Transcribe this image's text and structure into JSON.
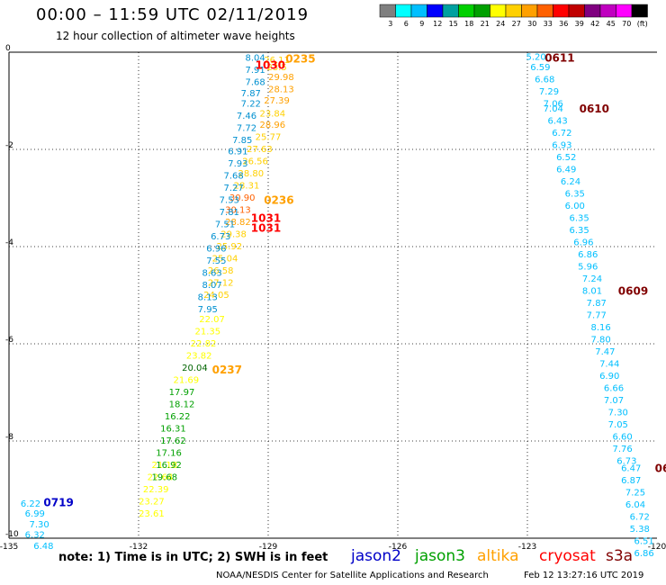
{
  "header": {
    "title": "00:00 – 11:59 UTC 02/11/2019",
    "subtitle": "12 hour collection of altimeter wave heights"
  },
  "colorbar": {
    "colors": [
      "#7f7f7f",
      "#00ffff",
      "#00bfff",
      "#0000ff",
      "#00a0a0",
      "#00d000",
      "#00a000",
      "#ffff00",
      "#ffd000",
      "#ffa000",
      "#ff6000",
      "#ff0000",
      "#c00000",
      "#800080",
      "#c000c0",
      "#ff00ff",
      "#000000"
    ],
    "labels": [
      "3",
      "6",
      "9",
      "12",
      "15",
      "18",
      "21",
      "24",
      "27",
      "30",
      "33",
      "36",
      "39",
      "42",
      "45",
      "70",
      "(ft)"
    ]
  },
  "notes": {
    "note": "note:  1) Time is in UTC;  2) SWH is in feet",
    "credit": "NOAA/NESDIS Center for Satellite Applications and Research",
    "timestamp": "Feb 12 13:27:16 UTC 2019"
  },
  "satellites": [
    {
      "name": "jason2",
      "color": "#0000c8"
    },
    {
      "name": "jason3",
      "color": "#00a000"
    },
    {
      "name": "altika",
      "color": "#ffa000"
    },
    {
      "name": "cryosat",
      "color": "#ff0000"
    },
    {
      "name": "s3a",
      "color": "#800000"
    }
  ],
  "chart_data": {
    "type": "scatter",
    "xlim": [
      -135,
      -120
    ],
    "ylim": [
      -10,
      0
    ],
    "xticks": [
      "-135",
      "-132",
      "-129",
      "-126",
      "-123",
      "-120"
    ],
    "yticks": [
      "0",
      "-2",
      "-4",
      "-6",
      "-8",
      "-10"
    ],
    "grid": true,
    "points": [
      {
        "x": -128.8,
        "y": -0.15,
        "v": "26.11",
        "c": "#ffd000"
      },
      {
        "x": -128.8,
        "y": -0.3,
        "v": "23.5",
        "c": "#ffd000"
      },
      {
        "x": -128.7,
        "y": -0.5,
        "v": "29.98",
        "c": "#ffa000"
      },
      {
        "x": -128.7,
        "y": -0.75,
        "v": "28.13",
        "c": "#ffa000"
      },
      {
        "x": -128.8,
        "y": -0.98,
        "v": "27.39",
        "c": "#ffa000"
      },
      {
        "x": -128.9,
        "y": -1.25,
        "v": "23.84",
        "c": "#ffd000"
      },
      {
        "x": -128.9,
        "y": -1.48,
        "v": "28.96",
        "c": "#ffa000"
      },
      {
        "x": -129.0,
        "y": -1.73,
        "v": "25.77",
        "c": "#ffd000"
      },
      {
        "x": -129.2,
        "y": -1.98,
        "v": "27.63",
        "c": "#ffd000"
      },
      {
        "x": -129.3,
        "y": -2.23,
        "v": "26.56",
        "c": "#ffd000"
      },
      {
        "x": -129.4,
        "y": -2.48,
        "v": "28.80",
        "c": "#ffd000"
      },
      {
        "x": -129.5,
        "y": -2.73,
        "v": "28.31",
        "c": "#ffd000"
      },
      {
        "x": -129.6,
        "y": -2.98,
        "v": "30.90",
        "c": "#ff6000"
      },
      {
        "x": -129.7,
        "y": -3.23,
        "v": "30.13",
        "c": "#ff6000"
      },
      {
        "x": -129.7,
        "y": -3.48,
        "v": "28.82",
        "c": "#ffa000"
      },
      {
        "x": -129.8,
        "y": -3.73,
        "v": "29.38",
        "c": "#ffd000"
      },
      {
        "x": -129.9,
        "y": -3.98,
        "v": "25.92",
        "c": "#ffd000"
      },
      {
        "x": -130.0,
        "y": -4.23,
        "v": "25.04",
        "c": "#ffd000"
      },
      {
        "x": -130.1,
        "y": -4.48,
        "v": "26.58",
        "c": "#ffd000"
      },
      {
        "x": -130.1,
        "y": -4.73,
        "v": "27.12",
        "c": "#ffd000"
      },
      {
        "x": -130.2,
        "y": -4.98,
        "v": "24.05",
        "c": "#ffd000"
      },
      {
        "x": -130.3,
        "y": -5.48,
        "v": "22.07",
        "c": "#ffff00"
      },
      {
        "x": -130.4,
        "y": -5.73,
        "v": "21.35",
        "c": "#ffff00"
      },
      {
        "x": -130.5,
        "y": -5.98,
        "v": "22.82",
        "c": "#ffff00"
      },
      {
        "x": -130.6,
        "y": -6.23,
        "v": "23.82",
        "c": "#ffff00"
      },
      {
        "x": -130.9,
        "y": -6.73,
        "v": "21.69",
        "c": "#ffff00"
      },
      {
        "x": -131.4,
        "y": -8.48,
        "v": "21.18",
        "c": "#ffff00"
      },
      {
        "x": -131.5,
        "y": -8.73,
        "v": "22.64",
        "c": "#ffff00"
      },
      {
        "x": -131.6,
        "y": -8.98,
        "v": "22.39",
        "c": "#ffff00"
      },
      {
        "x": -131.7,
        "y": -9.23,
        "v": "23.27",
        "c": "#ffff00"
      },
      {
        "x": -131.7,
        "y": -9.48,
        "v": "23.61",
        "c": "#ffff00"
      },
      {
        "x": -130.7,
        "y": -6.48,
        "v": "20.04",
        "c": "#006400"
      },
      {
        "x": -131.0,
        "y": -6.98,
        "v": "17.97",
        "c": "#00a000"
      },
      {
        "x": -131.0,
        "y": -7.23,
        "v": "18.12",
        "c": "#00a000"
      },
      {
        "x": -131.1,
        "y": -7.48,
        "v": "16.22",
        "c": "#00a000"
      },
      {
        "x": -131.2,
        "y": -7.73,
        "v": "16.31",
        "c": "#00a000"
      },
      {
        "x": -131.2,
        "y": -7.98,
        "v": "17.62",
        "c": "#00a000"
      },
      {
        "x": -131.3,
        "y": -8.23,
        "v": "17.16",
        "c": "#00a000"
      },
      {
        "x": -131.3,
        "y": -8.48,
        "v": "16.92",
        "c": "#00a000"
      },
      {
        "x": -131.4,
        "y": -8.73,
        "v": "19.68",
        "c": "#00a000"
      },
      {
        "x": -129.3,
        "y": -0.1,
        "v": "8.04",
        "c": "#0090d0"
      },
      {
        "x": -129.3,
        "y": -0.35,
        "v": "7.91",
        "c": "#0090d0"
      },
      {
        "x": -129.3,
        "y": -0.6,
        "v": "7.68",
        "c": "#0090d0"
      },
      {
        "x": -129.4,
        "y": -0.83,
        "v": "7.87",
        "c": "#0090d0"
      },
      {
        "x": -129.4,
        "y": -1.05,
        "v": "7.22",
        "c": "#0090d0"
      },
      {
        "x": -129.5,
        "y": -1.3,
        "v": "7.46",
        "c": "#0090d0"
      },
      {
        "x": -129.5,
        "y": -1.55,
        "v": "7.72",
        "c": "#0090d0"
      },
      {
        "x": -129.6,
        "y": -1.8,
        "v": "7.85",
        "c": "#0090d0"
      },
      {
        "x": -129.7,
        "y": -2.03,
        "v": "6.91",
        "c": "#0090d0"
      },
      {
        "x": -129.7,
        "y": -2.28,
        "v": "7.93",
        "c": "#0090d0"
      },
      {
        "x": -129.8,
        "y": -2.53,
        "v": "7.68",
        "c": "#0090d0"
      },
      {
        "x": -129.8,
        "y": -2.78,
        "v": "7.27",
        "c": "#0090d0"
      },
      {
        "x": -129.9,
        "y": -3.03,
        "v": "7.53",
        "c": "#0090d0"
      },
      {
        "x": -129.9,
        "y": -3.28,
        "v": "7.81",
        "c": "#0090d0"
      },
      {
        "x": -130.0,
        "y": -3.53,
        "v": "7.51",
        "c": "#0090d0"
      },
      {
        "x": -130.1,
        "y": -3.78,
        "v": "6.73",
        "c": "#0090d0"
      },
      {
        "x": -130.2,
        "y": -4.03,
        "v": "6.96",
        "c": "#0090d0"
      },
      {
        "x": -130.2,
        "y": -4.28,
        "v": "7.55",
        "c": "#0090d0"
      },
      {
        "x": -130.3,
        "y": -4.53,
        "v": "8.63",
        "c": "#0090d0"
      },
      {
        "x": -130.3,
        "y": -4.78,
        "v": "8.07",
        "c": "#0090d0"
      },
      {
        "x": -130.4,
        "y": -5.03,
        "v": "8.13",
        "c": "#0090d0"
      },
      {
        "x": -130.4,
        "y": -5.28,
        "v": "7.95",
        "c": "#0090d0"
      },
      {
        "x": -134.5,
        "y": -9.28,
        "v": "6.22",
        "c": "#00bfff"
      },
      {
        "x": -134.4,
        "y": -9.48,
        "v": "6.99",
        "c": "#00bfff"
      },
      {
        "x": -134.3,
        "y": -9.7,
        "v": "7.30",
        "c": "#00bfff"
      },
      {
        "x": -134.4,
        "y": -9.92,
        "v": "6.32",
        "c": "#00bfff"
      },
      {
        "x": -134.2,
        "y": -10.15,
        "v": "6.48",
        "c": "#00bfff"
      },
      {
        "x": -122.8,
        "y": -0.08,
        "v": "5.20",
        "c": "#00bfff"
      },
      {
        "x": -122.7,
        "y": -0.3,
        "v": "6.59",
        "c": "#00bfff"
      },
      {
        "x": -122.6,
        "y": -0.55,
        "v": "6.68",
        "c": "#00bfff"
      },
      {
        "x": -122.5,
        "y": -0.8,
        "v": "7.29",
        "c": "#00bfff"
      },
      {
        "x": -122.4,
        "y": -1.05,
        "v": "7.06",
        "c": "#00bfff"
      },
      {
        "x": -122.4,
        "y": -1.15,
        "v": "7.04",
        "c": "#00bfff"
      },
      {
        "x": -122.3,
        "y": -1.4,
        "v": "6.43",
        "c": "#00bfff"
      },
      {
        "x": -122.2,
        "y": -1.65,
        "v": "6.72",
        "c": "#00bfff"
      },
      {
        "x": -122.2,
        "y": -1.9,
        "v": "6.93",
        "c": "#00bfff"
      },
      {
        "x": -122.1,
        "y": -2.15,
        "v": "6.52",
        "c": "#00bfff"
      },
      {
        "x": -122.1,
        "y": -2.4,
        "v": "6.49",
        "c": "#00bfff"
      },
      {
        "x": -122.0,
        "y": -2.65,
        "v": "6.24",
        "c": "#00bfff"
      },
      {
        "x": -121.9,
        "y": -2.9,
        "v": "6.35",
        "c": "#00bfff"
      },
      {
        "x": -121.9,
        "y": -3.15,
        "v": "6.00",
        "c": "#00bfff"
      },
      {
        "x": -121.8,
        "y": -3.4,
        "v": "6.35",
        "c": "#00bfff"
      },
      {
        "x": -121.8,
        "y": -3.65,
        "v": "6.35",
        "c": "#00bfff"
      },
      {
        "x": -121.7,
        "y": -3.9,
        "v": "6.96",
        "c": "#00bfff"
      },
      {
        "x": -121.6,
        "y": -4.15,
        "v": "6.86",
        "c": "#00bfff"
      },
      {
        "x": -121.6,
        "y": -4.4,
        "v": "5.96",
        "c": "#00bfff"
      },
      {
        "x": -121.5,
        "y": -4.65,
        "v": "7.24",
        "c": "#00bfff"
      },
      {
        "x": -121.5,
        "y": -4.9,
        "v": "8.01",
        "c": "#00bfff"
      },
      {
        "x": -121.4,
        "y": -5.15,
        "v": "7.87",
        "c": "#00bfff"
      },
      {
        "x": -121.4,
        "y": -5.4,
        "v": "7.77",
        "c": "#00bfff"
      },
      {
        "x": -121.3,
        "y": -5.65,
        "v": "8.16",
        "c": "#00bfff"
      },
      {
        "x": -121.3,
        "y": -5.9,
        "v": "7.80",
        "c": "#00bfff"
      },
      {
        "x": -121.2,
        "y": -6.15,
        "v": "7.47",
        "c": "#00bfff"
      },
      {
        "x": -121.1,
        "y": -6.4,
        "v": "7.44",
        "c": "#00bfff"
      },
      {
        "x": -121.1,
        "y": -6.65,
        "v": "6.90",
        "c": "#00bfff"
      },
      {
        "x": -121.0,
        "y": -6.9,
        "v": "6.66",
        "c": "#00bfff"
      },
      {
        "x": -121.0,
        "y": -7.15,
        "v": "7.07",
        "c": "#00bfff"
      },
      {
        "x": -120.9,
        "y": -7.4,
        "v": "7.30",
        "c": "#00bfff"
      },
      {
        "x": -120.9,
        "y": -7.65,
        "v": "7.05",
        "c": "#00bfff"
      },
      {
        "x": -120.8,
        "y": -7.9,
        "v": "6.60",
        "c": "#00bfff"
      },
      {
        "x": -120.8,
        "y": -8.15,
        "v": "7.76",
        "c": "#00bfff"
      },
      {
        "x": -120.7,
        "y": -8.4,
        "v": "6.73",
        "c": "#00bfff"
      },
      {
        "x": -120.6,
        "y": -8.55,
        "v": "6.47",
        "c": "#00bfff"
      },
      {
        "x": -120.6,
        "y": -8.8,
        "v": "6.87",
        "c": "#00bfff"
      },
      {
        "x": -120.5,
        "y": -9.05,
        "v": "7.25",
        "c": "#00bfff"
      },
      {
        "x": -120.5,
        "y": -9.3,
        "v": "6.04",
        "c": "#00bfff"
      },
      {
        "x": -120.4,
        "y": -9.55,
        "v": "6.72",
        "c": "#00bfff"
      },
      {
        "x": -120.4,
        "y": -9.8,
        "v": "5.38",
        "c": "#00bfff"
      },
      {
        "x": -120.3,
        "y": -10.05,
        "v": "6.51",
        "c": "#00bfff"
      },
      {
        "x": -120.3,
        "y": -10.3,
        "v": "6.86",
        "c": "#00bfff"
      }
    ],
    "times": [
      {
        "x": -128.6,
        "y": -0.12,
        "t": "0235",
        "c": "#ffa000"
      },
      {
        "x": -129.3,
        "y": -0.25,
        "t": "1030",
        "c": "#ff0000"
      },
      {
        "x": -129.1,
        "y": -3.03,
        "t": "0236",
        "c": "#ffa000"
      },
      {
        "x": -129.4,
        "y": -3.4,
        "t": "1031",
        "c": "#ff0000"
      },
      {
        "x": -129.4,
        "y": -3.6,
        "t": "1031",
        "c": "#ff0000"
      },
      {
        "x": -130.3,
        "y": -6.52,
        "t": "0237",
        "c": "#ffa000"
      },
      {
        "x": -134.2,
        "y": -9.25,
        "t": "0719",
        "c": "#0000c8"
      },
      {
        "x": -122.6,
        "y": -0.1,
        "t": "0611",
        "c": "#800000"
      },
      {
        "x": -121.8,
        "y": -1.15,
        "t": "0610",
        "c": "#800000"
      },
      {
        "x": -120.9,
        "y": -4.9,
        "t": "0609",
        "c": "#800000"
      },
      {
        "x": -120.05,
        "y": -8.55,
        "t": "06",
        "c": "#800000"
      }
    ]
  }
}
